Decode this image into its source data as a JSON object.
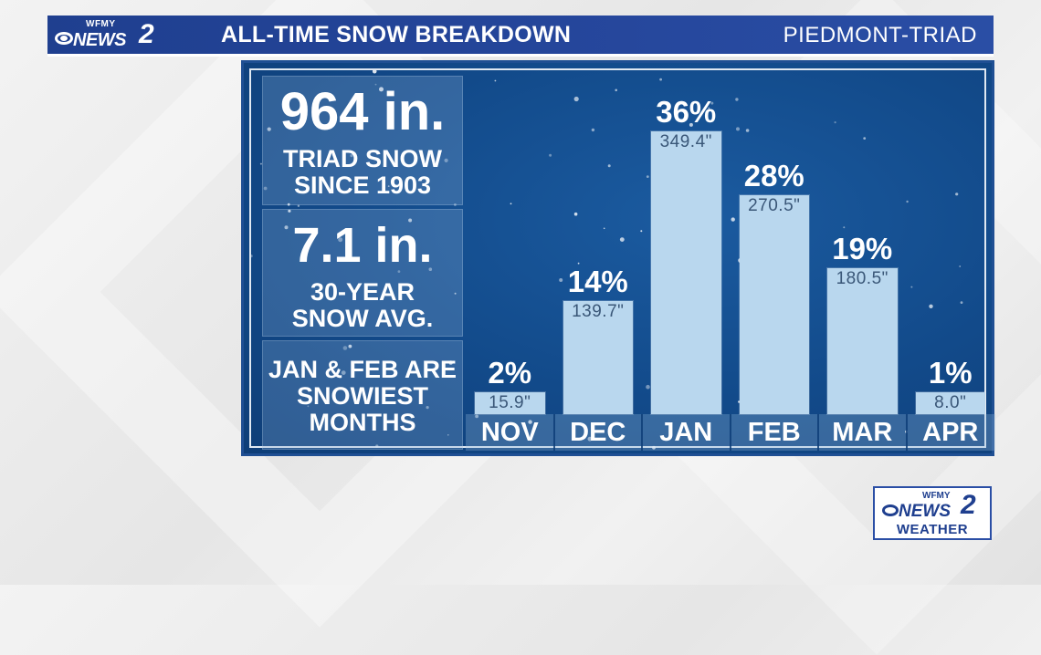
{
  "header": {
    "brand_top": "WFMY",
    "brand_word": "NEWS",
    "brand_number": "2",
    "title": "ALL-TIME SNOW BREAKDOWN",
    "region": "PIEDMONT-TRIAD"
  },
  "stats": [
    {
      "big": "964 in.",
      "lines": [
        "TRIAD SNOW",
        "SINCE 1903"
      ]
    },
    {
      "big": "7.1 in.",
      "lines": [
        "30-YEAR",
        "SNOW AVG."
      ]
    },
    {
      "big": "",
      "lines": [
        "JAN & FEB ARE",
        "SNOWIEST",
        "MONTHS"
      ]
    }
  ],
  "chart_data": {
    "type": "bar",
    "title": "ALL-TIME SNOW BREAKDOWN",
    "categories": [
      "NOV",
      "DEC",
      "JAN",
      "FEB",
      "MAR",
      "APR"
    ],
    "values": [
      15.9,
      139.7,
      349.4,
      270.5,
      180.5,
      8.0
    ],
    "value_labels": [
      "15.9\"",
      "139.7\"",
      "349.4\"",
      "270.5\"",
      "180.5\"",
      "8.0\""
    ],
    "percent_labels": [
      "2%",
      "14%",
      "36%",
      "28%",
      "19%",
      "1%"
    ],
    "ylim": [
      0,
      360
    ],
    "grid": false,
    "legend": "none",
    "colors": {
      "bar": "#b9d7ee",
      "panel": "#124a8a",
      "header": "#25469b"
    }
  },
  "corner_logo": {
    "brand_top": "WFMY",
    "brand_word": "NEWS",
    "brand_number": "2",
    "sub": "WEATHER"
  }
}
